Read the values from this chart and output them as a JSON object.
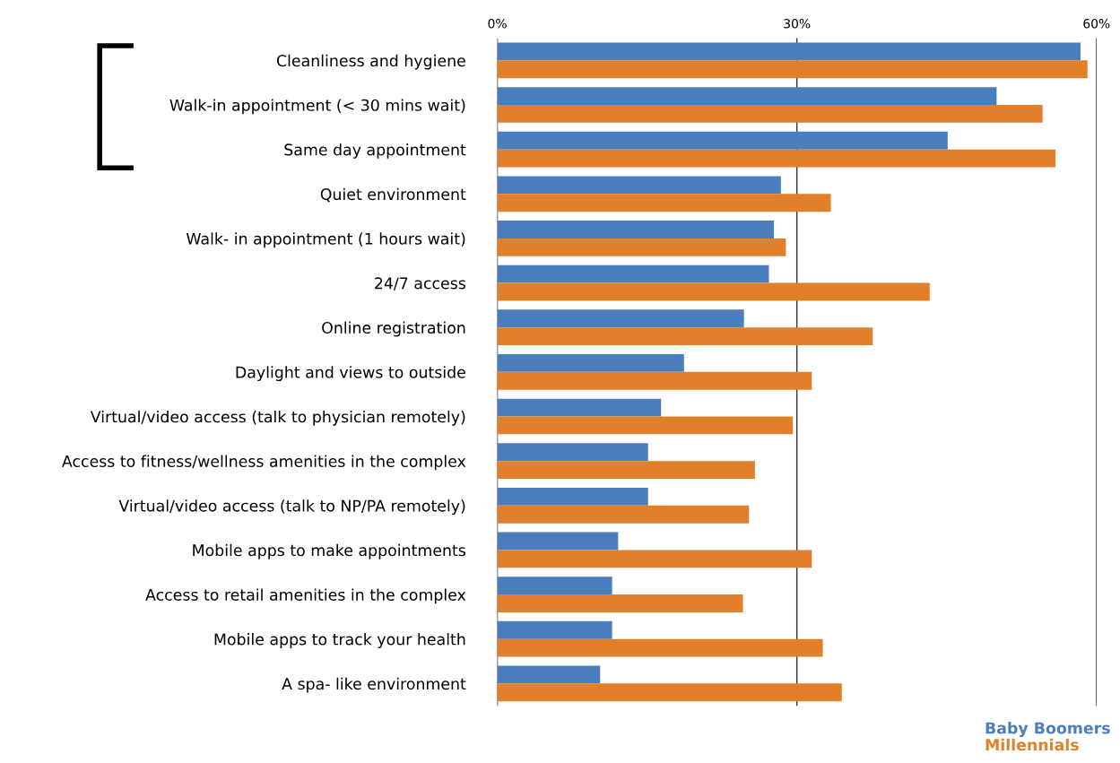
{
  "chart_data": {
    "type": "bar",
    "orientation": "horizontal",
    "categories": [
      "Cleanliness and hygiene",
      "Walk-in appointment (< 30 mins wait)",
      "Same day appointment",
      "Quiet environment",
      "Walk- in appointment (1 hours wait)",
      "24/7 access",
      "Online registration",
      "Daylight and views to outside",
      "Virtual/video access (talk to physician remotely)",
      "Access to fitness/wellness amenities in the complex",
      "Virtual/video access (talk to NP/PA remotely)",
      "Mobile apps to make appointments",
      "Access to retail amenities in the complex",
      "Mobile apps to track your health",
      "A spa- like environment"
    ],
    "series": [
      {
        "name": "Baby Boomers",
        "color": "#4a7ebf",
        "values": [
          58.4,
          50.0,
          45.1,
          28.4,
          27.7,
          27.2,
          24.7,
          18.7,
          16.4,
          15.1,
          15.1,
          12.1,
          11.5,
          11.5,
          10.3
        ]
      },
      {
        "name": "Millennials",
        "color": "#e27f2a",
        "values": [
          59.1,
          54.6,
          55.9,
          33.4,
          28.9,
          43.3,
          37.6,
          31.5,
          29.6,
          25.8,
          25.2,
          31.5,
          24.6,
          32.6,
          34.5
        ]
      }
    ],
    "xlim": [
      0,
      60
    ],
    "xticks": [
      {
        "value": 0,
        "label": "0%"
      },
      {
        "value": 30,
        "label": "30%"
      },
      {
        "value": 60,
        "label": "60%"
      }
    ],
    "grid": "x",
    "legend": "bottom right"
  }
}
